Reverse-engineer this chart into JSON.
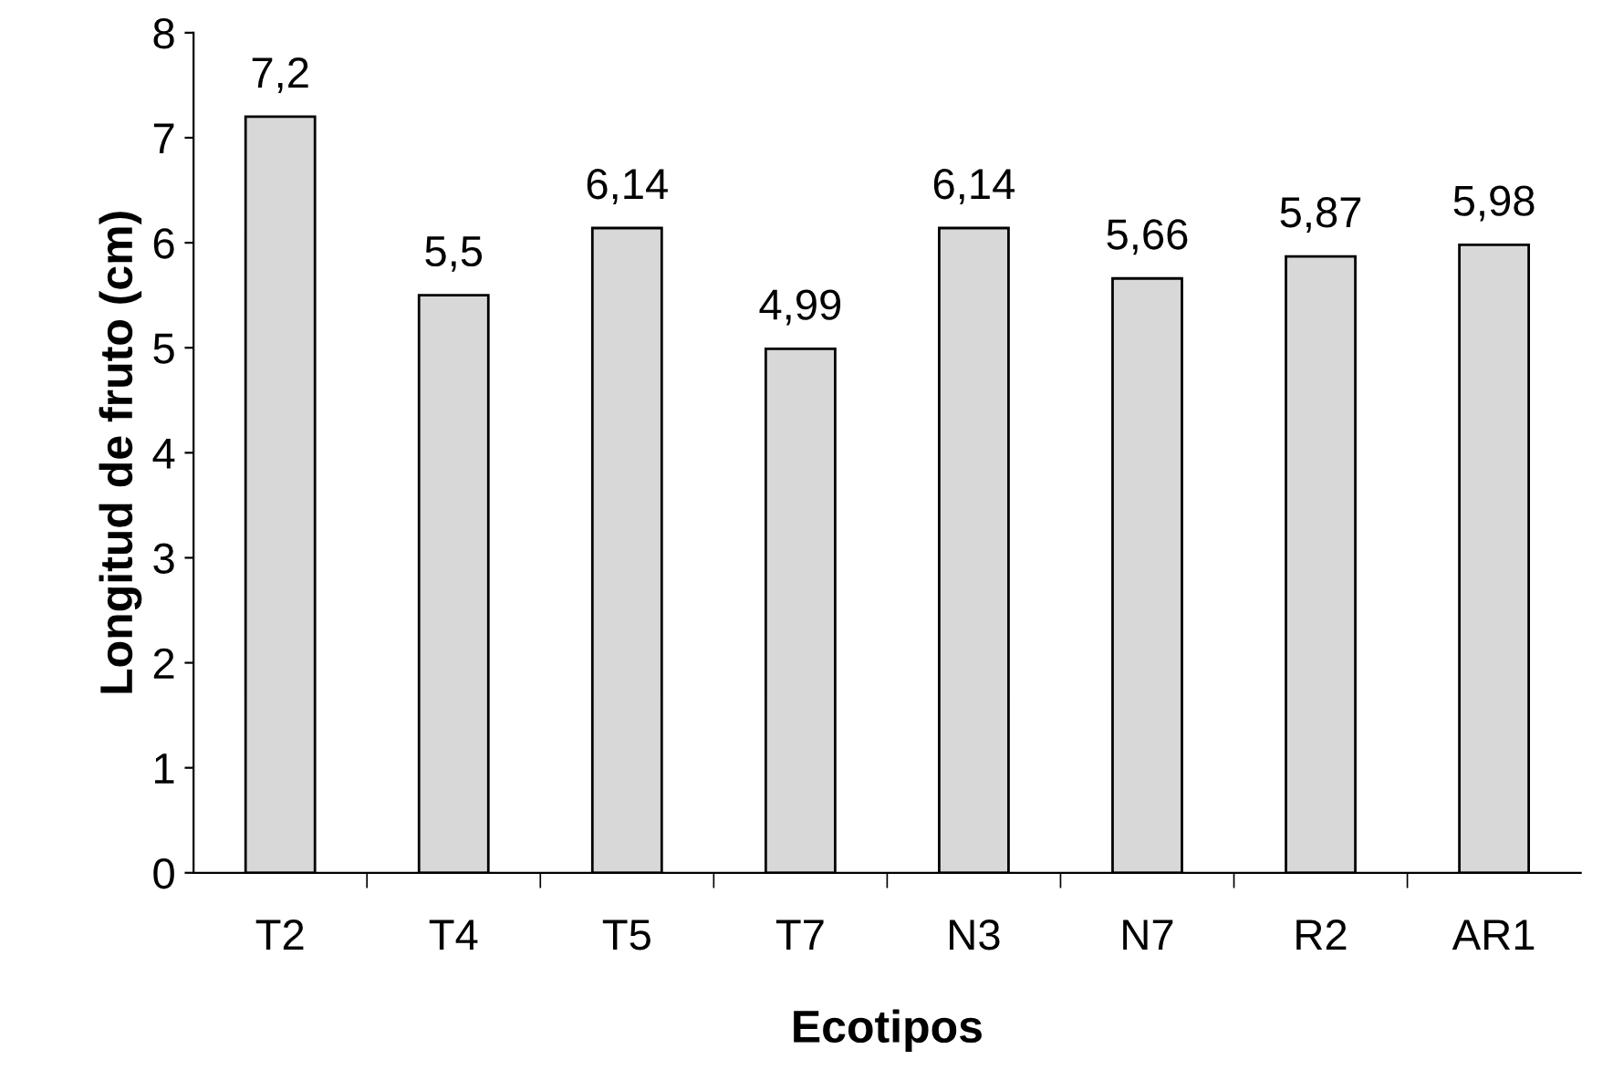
{
  "chart_data": {
    "type": "bar",
    "xlabel": "Ecotipos",
    "ylabel": "Longitud de fruto (cm)",
    "categories": [
      "T2",
      "T4",
      "T5",
      "T7",
      "N3",
      "N7",
      "R2",
      "AR1"
    ],
    "values": [
      7.2,
      5.5,
      6.14,
      4.99,
      6.14,
      5.66,
      5.87,
      5.98
    ],
    "value_labels": [
      "7,2",
      "5,5",
      "6,14",
      "4,99",
      "6,14",
      "5,66",
      "5,87",
      "5,98"
    ],
    "color": "#d8d8d8",
    "ylim": [
      0,
      8
    ],
    "yticks": [
      0,
      1,
      2,
      3,
      4,
      5,
      6,
      7,
      8
    ],
    "grid": false,
    "legend": false
  }
}
